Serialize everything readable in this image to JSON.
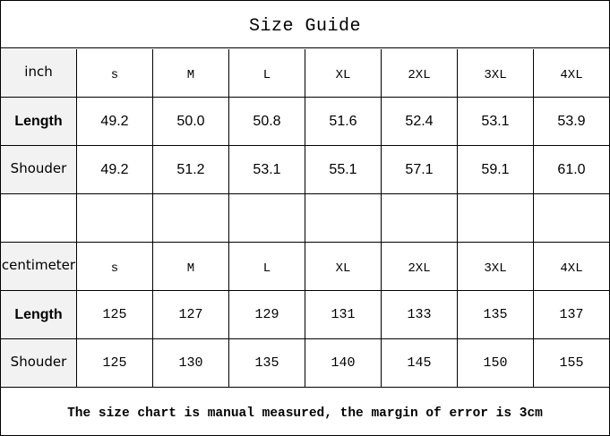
{
  "title": "Size Guide",
  "sizes": [
    "s",
    "M",
    "L",
    "XL",
    "2XL",
    "3XL",
    "4XL"
  ],
  "inch": {
    "unit_label": "inch",
    "rows": [
      {
        "label": "Length",
        "values": [
          "49.2",
          "50.0",
          "50.8",
          "51.6",
          "52.4",
          "53.1",
          "53.9"
        ]
      },
      {
        "label": "Shouder",
        "values": [
          "49.2",
          "51.2",
          "53.1",
          "55.1",
          "57.1",
          "59.1",
          "61.0"
        ]
      }
    ]
  },
  "centimeter": {
    "unit_label": "centimeter",
    "rows": [
      {
        "label": "Length",
        "values": [
          "125",
          "127",
          "129",
          "131",
          "133",
          "135",
          "137"
        ]
      },
      {
        "label": "Shouder",
        "values": [
          "125",
          "130",
          "135",
          "140",
          "145",
          "150",
          "155"
        ]
      }
    ]
  },
  "note": "The size chart is manual measured, the margin of error is 3cm",
  "colors": {
    "label_bg": "#f2f2f2",
    "border": "#000000"
  }
}
